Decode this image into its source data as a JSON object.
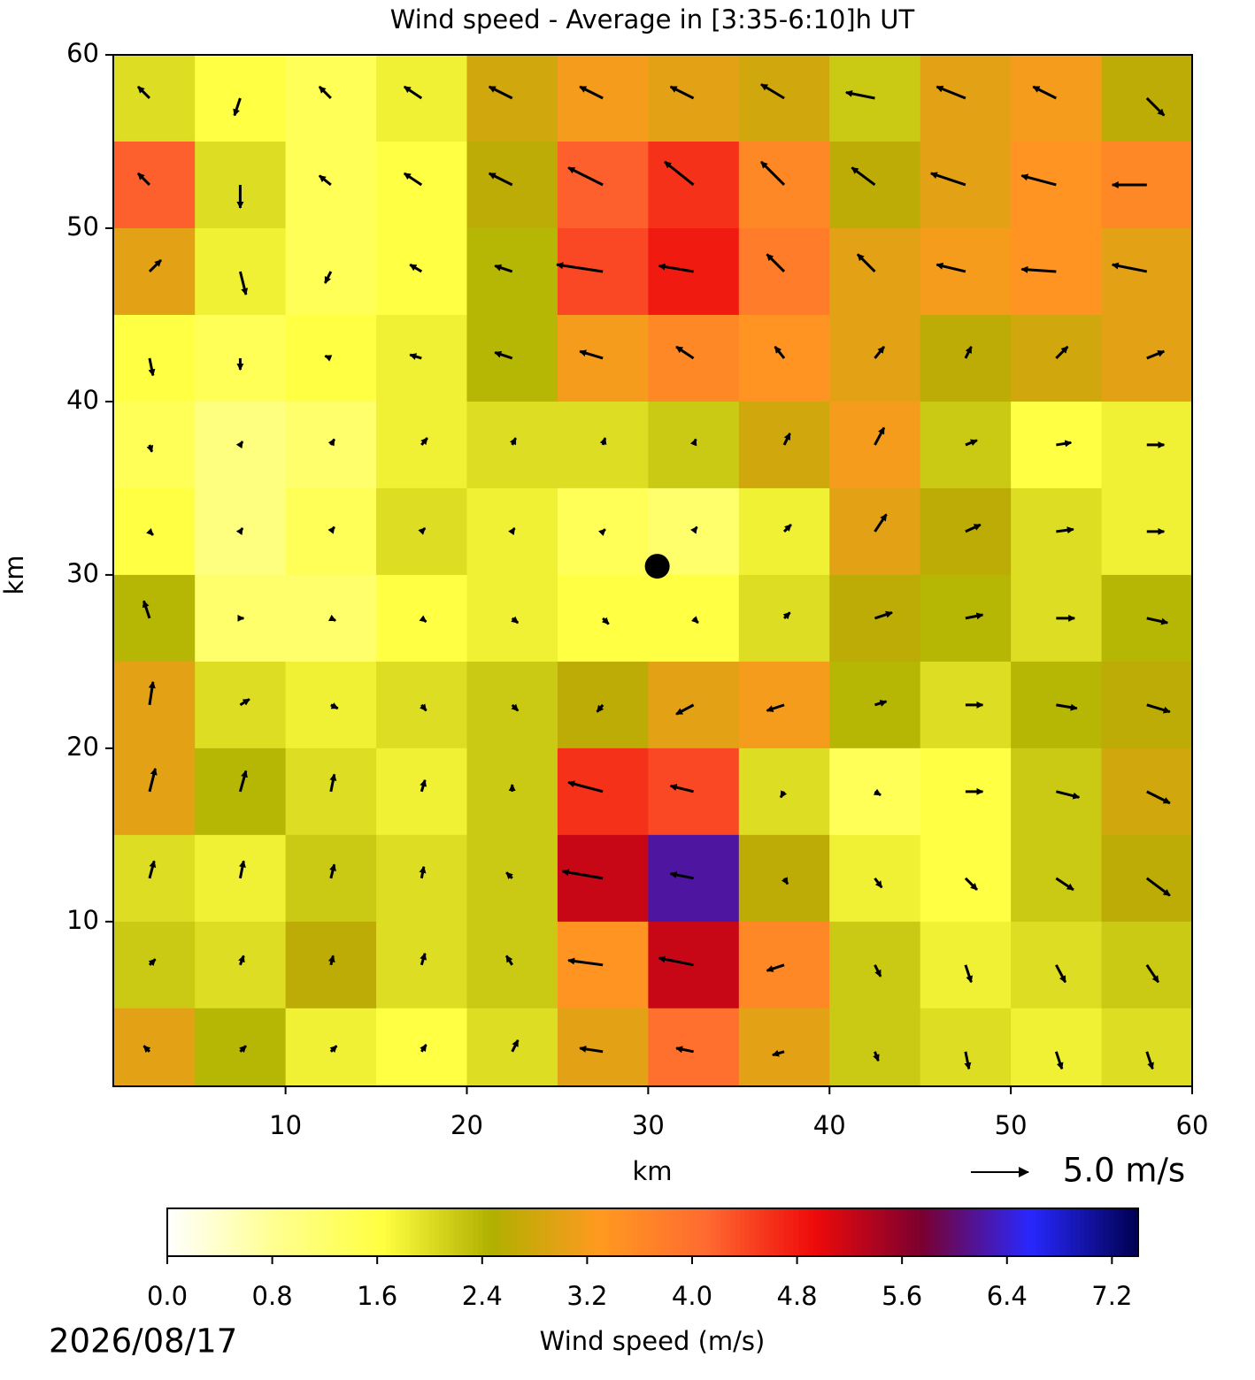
{
  "chart_data": {
    "type": "heatmap-vector",
    "title": "Wind speed - Average in [3:35-6:10]h UT",
    "x_label": "km",
    "y_label": "km",
    "xlim": [
      0.5,
      60
    ],
    "ylim": [
      0.5,
      60
    ],
    "xticks": [
      10,
      20,
      30,
      40,
      50,
      60
    ],
    "yticks": [
      10,
      20,
      30,
      40,
      50,
      60
    ],
    "x": [
      2.5,
      7.5,
      12.5,
      17.5,
      22.5,
      27.5,
      32.5,
      37.5,
      42.5,
      47.5,
      52.5,
      57.5
    ],
    "y": [
      57.5,
      52.5,
      47.5,
      42.5,
      37.5,
      32.5,
      27.5,
      22.5,
      17.5,
      12.5,
      7.5,
      2.5
    ],
    "z": [
      [
        2.0,
        1.6,
        1.4,
        1.8,
        2.8,
        3.2,
        3.0,
        2.8,
        2.2,
        3.0,
        3.2,
        2.6
      ],
      [
        4.2,
        2.0,
        1.4,
        1.6,
        2.6,
        4.2,
        4.6,
        3.6,
        2.6,
        3.0,
        3.4,
        3.6
      ],
      [
        3.0,
        1.8,
        1.4,
        1.6,
        2.4,
        4.4,
        4.8,
        3.8,
        3.0,
        3.2,
        3.4,
        3.0
      ],
      [
        1.6,
        1.4,
        1.6,
        1.8,
        2.4,
        3.2,
        3.6,
        3.4,
        3.0,
        2.6,
        2.8,
        3.0
      ],
      [
        1.4,
        1.0,
        1.2,
        1.8,
        2.0,
        2.0,
        2.2,
        2.8,
        3.2,
        2.2,
        1.6,
        1.8
      ],
      [
        1.6,
        1.0,
        1.4,
        2.0,
        1.8,
        1.4,
        1.2,
        1.8,
        3.0,
        2.6,
        2.0,
        1.8
      ],
      [
        2.4,
        1.2,
        1.2,
        1.6,
        1.8,
        1.6,
        1.6,
        2.0,
        2.6,
        2.4,
        2.0,
        2.4
      ],
      [
        3.0,
        2.0,
        1.8,
        2.0,
        2.2,
        2.6,
        3.0,
        3.2,
        2.4,
        2.0,
        2.4,
        2.6
      ],
      [
        3.0,
        2.4,
        2.0,
        1.8,
        2.2,
        4.6,
        4.4,
        2.0,
        1.4,
        1.6,
        2.2,
        2.8
      ],
      [
        2.0,
        1.8,
        2.2,
        2.0,
        2.2,
        5.2,
        6.2,
        2.6,
        1.8,
        1.6,
        2.2,
        2.6
      ],
      [
        2.2,
        2.0,
        2.6,
        2.0,
        2.2,
        3.4,
        5.2,
        3.6,
        2.2,
        1.8,
        2.0,
        2.2
      ],
      [
        3.0,
        2.4,
        1.8,
        1.6,
        2.0,
        3.0,
        4.0,
        3.0,
        2.2,
        2.0,
        1.8,
        2.0
      ]
    ],
    "u": [
      [
        -1,
        -0.5,
        -1,
        -1.5,
        -2,
        -2,
        -2,
        -2,
        -2.5,
        -2.5,
        -2,
        1.5
      ],
      [
        -1,
        0,
        -1,
        -1.5,
        -2,
        -3,
        -2.5,
        -2,
        -2,
        -3,
        -3,
        -3
      ],
      [
        1,
        0.5,
        -0.5,
        -1,
        -1.5,
        -4,
        -3,
        -1.5,
        -1.5,
        -2.5,
        -3,
        -3
      ],
      [
        0.3,
        0,
        -0.5,
        -1,
        -1.5,
        -2,
        -1.5,
        -0.8,
        0.8,
        0.5,
        1,
        1.5
      ],
      [
        0.2,
        0.2,
        0.3,
        0.5,
        0.3,
        0.2,
        0.2,
        0.5,
        0.8,
        1,
        1.3,
        1.5
      ],
      [
        0.3,
        0.2,
        0.3,
        0.3,
        0.2,
        0.2,
        0.3,
        0.6,
        1,
        1.3,
        1.5,
        1.5
      ],
      [
        -0.5,
        0.3,
        0.4,
        0.4,
        0.5,
        0.5,
        0.4,
        0.5,
        1.5,
        1.5,
        1.6,
        1.8
      ],
      [
        0.3,
        0.8,
        0.6,
        0.4,
        0.5,
        -0.5,
        -1.5,
        -1.5,
        1,
        1.5,
        1.8,
        2
      ],
      [
        0.5,
        0.5,
        0.3,
        0.3,
        0,
        -3,
        -2,
        -0.3,
        0.5,
        1.5,
        2,
        2
      ],
      [
        0.4,
        0.3,
        0.3,
        0.2,
        -0.5,
        -3.5,
        -2,
        0.3,
        0.6,
        1,
        1.5,
        2
      ],
      [
        0.5,
        0.3,
        0.2,
        0.3,
        -0.5,
        -3,
        -3,
        -1.5,
        0.5,
        0.5,
        0.8,
        1
      ],
      [
        -0.5,
        0.5,
        0.5,
        0.4,
        0.5,
        -2,
        -1.5,
        -1,
        0.3,
        0.3,
        0.5,
        0.5
      ]
    ],
    "v": [
      [
        1,
        -1.5,
        1,
        1,
        1,
        1,
        1,
        1.2,
        0.5,
        1,
        1,
        -1.5
      ],
      [
        1,
        -2,
        0.8,
        1,
        1,
        1.5,
        2,
        2,
        1.5,
        1,
        0.8,
        0
      ],
      [
        1,
        -2,
        -1,
        0.6,
        0.5,
        0.6,
        0.5,
        1.5,
        1.5,
        0.6,
        0.2,
        0.6
      ],
      [
        -1.5,
        -1,
        0.2,
        0.3,
        0.5,
        0.6,
        1,
        1,
        1,
        1,
        1,
        0.6
      ],
      [
        -0.6,
        0.3,
        0.5,
        0.6,
        0.6,
        0.6,
        0.5,
        1,
        1.5,
        0.4,
        0.2,
        0
      ],
      [
        -0.3,
        0.3,
        0.4,
        0.3,
        0.3,
        0.2,
        0.4,
        0.6,
        1.5,
        0.6,
        0.2,
        0
      ],
      [
        1.5,
        0,
        -0.2,
        -0.3,
        -0.4,
        -0.5,
        -0.4,
        0.5,
        0.5,
        0.3,
        0,
        -0.4
      ],
      [
        2,
        0.5,
        -0.3,
        -0.5,
        -0.5,
        -0.6,
        -0.8,
        -0.5,
        0.3,
        0,
        -0.3,
        -0.6
      ],
      [
        2,
        1.8,
        1.5,
        1,
        0.6,
        0.8,
        0.5,
        -0.5,
        -0.3,
        0,
        -0.5,
        -1
      ],
      [
        1.5,
        1.5,
        1.2,
        1,
        0.5,
        0.6,
        0.4,
        -0.5,
        -0.8,
        -1,
        -1,
        -1.5
      ],
      [
        0.5,
        0.8,
        0.8,
        1,
        0.8,
        0.4,
        0.6,
        -0.5,
        -1,
        -1.5,
        -1.5,
        -1.5
      ],
      [
        0.5,
        0.5,
        0.5,
        0.6,
        1,
        0.3,
        0.3,
        -0.3,
        -0.8,
        -1.5,
        -1.5,
        -1.5
      ]
    ],
    "marker": {
      "x": 30.5,
      "y": 30.5
    },
    "key": {
      "value": 5,
      "label": "5.0 m/s"
    },
    "colors": [
      "#ffffff",
      "#ffff90",
      "#ffff40",
      "#b0b000",
      "#ff9a20",
      "#ff6a30",
      "#ee0a0a",
      "#7a0030",
      "#2828ff",
      "#000050"
    ],
    "colorbar": {
      "label": "Wind speed (m/s)",
      "clim": [
        0,
        7.4
      ],
      "ticks": [
        {
          "value": 0,
          "label": "0.0"
        },
        {
          "value": 0.8,
          "label": "0.8"
        },
        {
          "value": 1.6,
          "label": "1.6"
        },
        {
          "value": 2.4,
          "label": "2.4"
        },
        {
          "value": 3.2,
          "label": "3.2"
        },
        {
          "value": 4,
          "label": "4.0"
        },
        {
          "value": 4.8,
          "label": "4.8"
        },
        {
          "value": 5.6,
          "label": "5.6"
        },
        {
          "value": 6.4,
          "label": "6.4"
        },
        {
          "value": 7.2,
          "label": "7.2"
        }
      ]
    },
    "date": "2026/08/17"
  }
}
